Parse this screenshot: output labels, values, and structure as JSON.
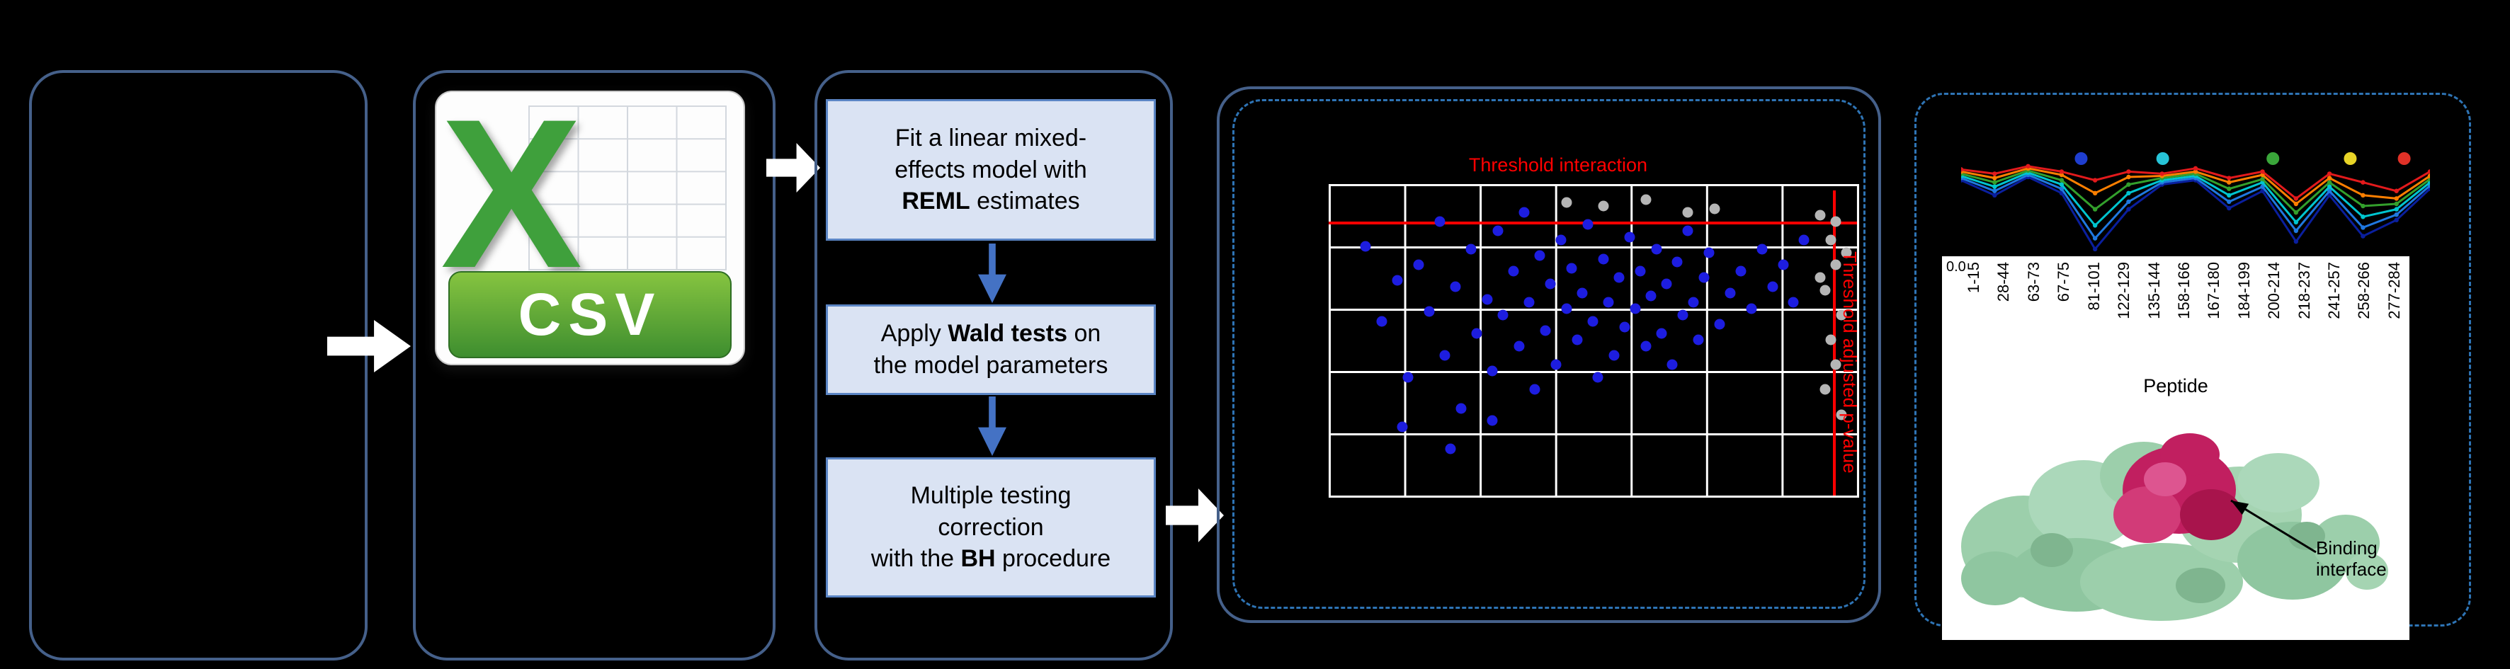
{
  "figure": {
    "background": "#000000",
    "stage_border_color": "#45608a",
    "dashed_border_color": "#2e74b5"
  },
  "csv_icon": {
    "x_letter": "X",
    "banner_label": "CSV"
  },
  "pipeline": {
    "steps": [
      {
        "segments": [
          {
            "text": "Fit a linear mixed-\neffects model with\n"
          },
          {
            "text": "REML",
            "bold": true
          },
          {
            "text": " estimates"
          }
        ]
      },
      {
        "segments": [
          {
            "text": "Apply "
          },
          {
            "text": "Wald tests",
            "bold": true
          },
          {
            "text": " on\nthe model parameters"
          }
        ]
      },
      {
        "segments": [
          {
            "text": "Multiple testing\ncorrection\nwith the "
          },
          {
            "text": "BH",
            "bold": true
          },
          {
            "text": " procedure"
          }
        ]
      }
    ]
  },
  "scatter_labels": {
    "title": "Threshold interaction",
    "side_label": "Threshold adjusted p-value"
  },
  "peptide_panel": {
    "ytick": "0.0",
    "xlabel": "Peptide",
    "binding_annotation": "Binding interface"
  },
  "chart_data": [
    {
      "type": "scatter",
      "title": "Threshold interaction",
      "note": "point coordinates are percent of plot area, origin top-left",
      "grid": {
        "columns": 7,
        "rows": 5,
        "line_color": "#ffffff",
        "background": "#000000"
      },
      "thresholds": {
        "horizontal_pct_from_top": 12,
        "vertical_pct_from_left": 95.5,
        "color": "#ff0000",
        "h_label": "Threshold interaction",
        "v_label": "Threshold adjusted p-value"
      },
      "series": [
        {
          "name": "points-blue",
          "color": "#1d1de0",
          "points": [
            [
              7,
              20
            ],
            [
              10,
              44
            ],
            [
              13,
              31
            ],
            [
              15,
              62
            ],
            [
              17,
              26
            ],
            [
              19,
              41
            ],
            [
              21,
              12
            ],
            [
              22,
              55
            ],
            [
              24,
              33
            ],
            [
              25,
              72
            ],
            [
              27,
              21
            ],
            [
              28,
              48
            ],
            [
              30,
              37
            ],
            [
              31,
              60
            ],
            [
              32,
              15
            ],
            [
              33,
              42
            ],
            [
              35,
              28
            ],
            [
              36,
              52
            ],
            [
              37,
              9
            ],
            [
              38,
              38
            ],
            [
              39,
              66
            ],
            [
              40,
              23
            ],
            [
              41,
              47
            ],
            [
              42,
              32
            ],
            [
              43,
              58
            ],
            [
              44,
              18
            ],
            [
              45,
              40
            ],
            [
              46,
              27
            ],
            [
              47,
              50
            ],
            [
              48,
              35
            ],
            [
              49,
              13
            ],
            [
              50,
              44
            ],
            [
              51,
              62
            ],
            [
              52,
              24
            ],
            [
              53,
              38
            ],
            [
              54,
              55
            ],
            [
              55,
              30
            ],
            [
              56,
              46
            ],
            [
              57,
              17
            ],
            [
              58,
              40
            ],
            [
              59,
              28
            ],
            [
              60,
              52
            ],
            [
              61,
              36
            ],
            [
              62,
              21
            ],
            [
              63,
              48
            ],
            [
              64,
              32
            ],
            [
              65,
              58
            ],
            [
              66,
              25
            ],
            [
              67,
              42
            ],
            [
              68,
              15
            ],
            [
              69,
              38
            ],
            [
              70,
              50
            ],
            [
              71,
              30
            ],
            [
              72,
              22
            ],
            [
              74,
              45
            ],
            [
              76,
              35
            ],
            [
              78,
              28
            ],
            [
              80,
              40
            ],
            [
              82,
              21
            ],
            [
              84,
              33
            ],
            [
              14,
              78
            ],
            [
              23,
              85
            ],
            [
              31,
              76
            ],
            [
              86,
              26
            ],
            [
              88,
              38
            ],
            [
              90,
              18
            ]
          ]
        },
        {
          "name": "points-gray",
          "color": "#b5b5b5",
          "points": [
            [
              93,
              10
            ],
            [
              95,
              18
            ],
            [
              96,
              26
            ],
            [
              94,
              34
            ],
            [
              97,
              42
            ],
            [
              95,
              50
            ],
            [
              96,
              58
            ],
            [
              94,
              66
            ],
            [
              97,
              74
            ],
            [
              98,
              22
            ],
            [
              96,
              12
            ],
            [
              93,
              30
            ],
            [
              52,
              7
            ],
            [
              60,
              5
            ],
            [
              68,
              9
            ],
            [
              45,
              6
            ],
            [
              73,
              8
            ]
          ]
        }
      ]
    },
    {
      "type": "line",
      "xlabel": "Peptide",
      "visible_ytick": "0.0",
      "legend_position": "top",
      "legend_dots": [
        "#1f3ecf",
        "#27c4d8",
        "#3aa63a",
        "#e8d427",
        "#e03127"
      ],
      "categories": [
        "1-15",
        "28-44",
        "63-73",
        "67-75",
        "81-101",
        "122-129",
        "135-144",
        "158-166",
        "167-180",
        "184-199",
        "200-214",
        "218-237",
        "241-257",
        "258-266",
        "277-284"
      ],
      "series": [
        {
          "name": "line-navy",
          "color": "#0a1f9e",
          "values": [
            0.72,
            0.58,
            0.75,
            0.6,
            0.08,
            0.45,
            0.68,
            0.72,
            0.46,
            0.62,
            0.15,
            0.58,
            0.2,
            0.35,
            0.64
          ]
        },
        {
          "name": "line-blue",
          "color": "#1f78e0",
          "values": [
            0.74,
            0.62,
            0.77,
            0.64,
            0.18,
            0.52,
            0.7,
            0.74,
            0.52,
            0.66,
            0.25,
            0.62,
            0.28,
            0.4,
            0.67
          ]
        },
        {
          "name": "line-cyan",
          "color": "#00c5cf",
          "values": [
            0.76,
            0.66,
            0.79,
            0.68,
            0.3,
            0.6,
            0.72,
            0.76,
            0.58,
            0.7,
            0.33,
            0.66,
            0.38,
            0.45,
            0.7
          ]
        },
        {
          "name": "line-green",
          "color": "#33a02c",
          "values": [
            0.78,
            0.7,
            0.81,
            0.72,
            0.45,
            0.68,
            0.74,
            0.78,
            0.64,
            0.73,
            0.42,
            0.7,
            0.48,
            0.5,
            0.73
          ]
        },
        {
          "name": "line-orange",
          "color": "#ff7f00",
          "values": [
            0.8,
            0.74,
            0.83,
            0.77,
            0.6,
            0.75,
            0.76,
            0.8,
            0.7,
            0.77,
            0.5,
            0.74,
            0.58,
            0.55,
            0.76
          ]
        },
        {
          "name": "line-red",
          "color": "#e31a1c",
          "values": [
            0.82,
            0.78,
            0.85,
            0.8,
            0.72,
            0.8,
            0.78,
            0.83,
            0.74,
            0.8,
            0.55,
            0.78,
            0.7,
            0.62,
            0.8
          ]
        }
      ]
    }
  ]
}
